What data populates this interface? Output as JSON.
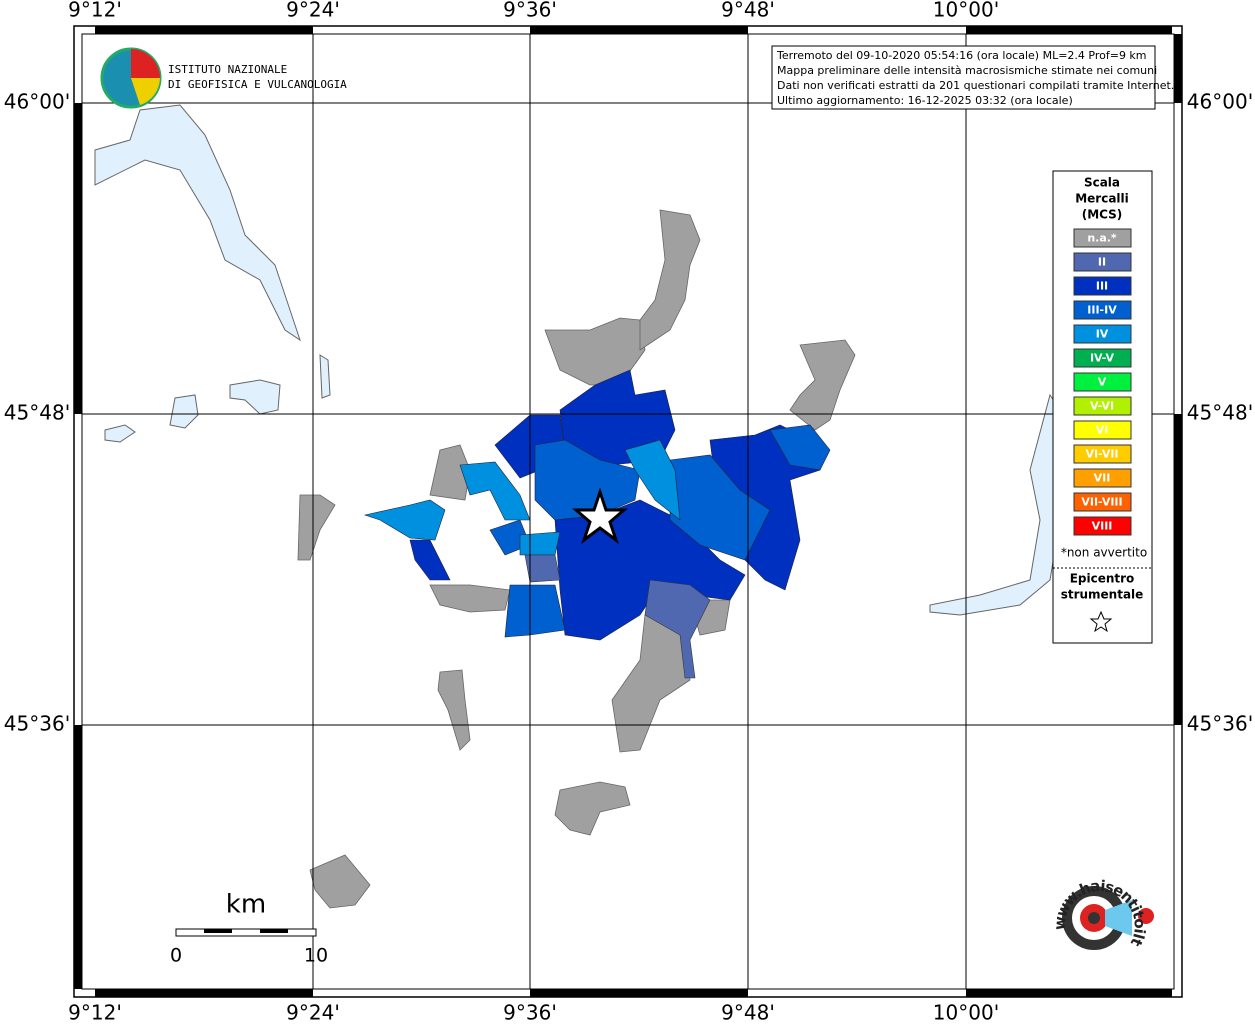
{
  "header": {
    "lines": [
      "Terremoto del 09-10-2020 05:54:16 (ora locale) ML=2.4 Prof=9 km",
      "Mappa preliminare delle intensità macrosismiche stimate nei comuni",
      "Dati non verificati estratti da 201 questionari compilati tramite Internet.",
      "Ultimo aggiornamento: 16-12-2025 03:32 (ora locale)"
    ]
  },
  "logo": {
    "line1": "ISTITUTO NAZIONALE",
    "line2": "DI GEOFISICA E VULCANOLOGIA"
  },
  "axes": {
    "top": [
      "9°12'",
      "9°24'",
      "9°36'",
      "9°48'",
      "10°00'"
    ],
    "bottom": [
      "9°12'",
      "9°24'",
      "9°36'",
      "9°48'",
      "10°00'"
    ],
    "left": [
      "46°00'",
      "45°48'",
      "45°36'"
    ],
    "right": [
      "46°00'",
      "45°48'",
      "45°36'"
    ]
  },
  "legend": {
    "title": [
      "Scala",
      "Mercalli",
      "(MCS)"
    ],
    "items": [
      {
        "label": "n.a.*",
        "color": "#a0a0a0"
      },
      {
        "label": "II",
        "color": "#4f68b0"
      },
      {
        "label": "III",
        "color": "#0030c0"
      },
      {
        "label": "III-IV",
        "color": "#0060d0"
      },
      {
        "label": "IV",
        "color": "#0090e0"
      },
      {
        "label": "IV-V",
        "color": "#00b050"
      },
      {
        "label": "V",
        "color": "#00f040"
      },
      {
        "label": "V-VI",
        "color": "#b0f000"
      },
      {
        "label": "VI",
        "color": "#ffff00"
      },
      {
        "label": "VI-VII",
        "color": "#ffcc00"
      },
      {
        "label": "VII",
        "color": "#ffa000"
      },
      {
        "label": "VII-VIII",
        "color": "#ff6000"
      },
      {
        "label": "VIII",
        "color": "#ff0000"
      }
    ],
    "note": "*non avvertito",
    "epicenter": [
      "Epicentro",
      "strumentale"
    ]
  },
  "scale": {
    "unit": "km",
    "labels": [
      "0",
      "10"
    ]
  },
  "site_logo": "www.haisentitoilterremoto.it"
}
